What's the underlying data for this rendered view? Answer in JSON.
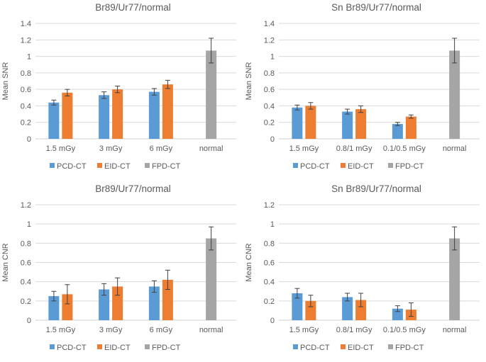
{
  "colors": {
    "PCD-CT": "#5b9bd5",
    "EID-CT": "#ed7d31",
    "FPD-CT": "#a5a5a5",
    "grid": "#d9d9d9",
    "error": "#404040"
  },
  "chart_data": [
    {
      "type": "bar",
      "title": "Br89/Ur77/normal",
      "ylabel": "Mean SNR",
      "ylim": [
        0,
        1.4
      ],
      "yticks": [
        "0",
        "0.2",
        "0.4",
        "0.6",
        "0.8",
        "1",
        "1.2",
        "1.4"
      ],
      "categories": [
        "1.5 mGy",
        "3 mGy",
        "6 mGy",
        "normal"
      ],
      "series": [
        {
          "name": "PCD-CT",
          "values": [
            0.44,
            0.53,
            0.57,
            null
          ],
          "errors": [
            0.03,
            0.04,
            0.04,
            null
          ]
        },
        {
          "name": "EID-CT",
          "values": [
            0.56,
            0.6,
            0.66,
            null
          ],
          "errors": [
            0.04,
            0.04,
            0.05,
            null
          ]
        },
        {
          "name": "FPD-CT",
          "values": [
            null,
            null,
            null,
            1.07
          ],
          "errors": [
            null,
            null,
            null,
            0.15
          ]
        }
      ],
      "legend": [
        "PCD-CT",
        "EID-CT",
        "FPD-CT"
      ]
    },
    {
      "type": "bar",
      "title": "Sn Br89/Ur77/normal",
      "ylabel": "Mean SNR",
      "ylim": [
        0,
        1.4
      ],
      "yticks": [
        "0",
        "0.2",
        "0.4",
        "0.6",
        "0.8",
        "1",
        "1.2",
        "1.4"
      ],
      "categories": [
        "1.5 mGy",
        "0.8/1 mGy",
        "0.1/0.5 mGy",
        "normal"
      ],
      "series": [
        {
          "name": "PCD-CT",
          "values": [
            0.38,
            0.33,
            0.18,
            null
          ],
          "errors": [
            0.03,
            0.03,
            0.02,
            null
          ]
        },
        {
          "name": "EID-CT",
          "values": [
            0.4,
            0.36,
            0.27,
            null
          ],
          "errors": [
            0.04,
            0.04,
            0.02,
            null
          ]
        },
        {
          "name": "FPD-CT",
          "values": [
            null,
            null,
            null,
            1.07
          ],
          "errors": [
            null,
            null,
            null,
            0.15
          ]
        }
      ],
      "legend": [
        "PCD-CT",
        "EID-CT",
        "FPD-CT"
      ]
    },
    {
      "type": "bar",
      "title": "Br89/Ur77/normal",
      "ylabel": "Mean CNR",
      "ylim": [
        0,
        1.2
      ],
      "yticks": [
        "0",
        "0.2",
        "0.4",
        "0.6",
        "0.8",
        "1",
        "1.2"
      ],
      "categories": [
        "1.5 mGy",
        "3 mGy",
        "6 mGy",
        "normal"
      ],
      "series": [
        {
          "name": "PCD-CT",
          "values": [
            0.25,
            0.32,
            0.35,
            null
          ],
          "errors": [
            0.05,
            0.06,
            0.06,
            null
          ]
        },
        {
          "name": "EID-CT",
          "values": [
            0.27,
            0.35,
            0.42,
            null
          ],
          "errors": [
            0.1,
            0.09,
            0.1,
            null
          ]
        },
        {
          "name": "FPD-CT",
          "values": [
            null,
            null,
            null,
            0.85
          ],
          "errors": [
            null,
            null,
            null,
            0.12
          ]
        }
      ],
      "legend": [
        "PCD-CT",
        "EID-CT",
        "FPD-CT"
      ]
    },
    {
      "type": "bar",
      "title": "Sn Br89/Ur77/normal",
      "ylabel": "Mean CNR",
      "ylim": [
        0,
        1.2
      ],
      "yticks": [
        "0",
        "0.2",
        "0.4",
        "0.6",
        "0.8",
        "1",
        "1.2"
      ],
      "categories": [
        "1.5 mGy",
        "0.8/1 mGy",
        "0.1/0.5 mGy",
        "normal"
      ],
      "series": [
        {
          "name": "PCD-CT",
          "values": [
            0.28,
            0.24,
            0.12,
            null
          ],
          "errors": [
            0.05,
            0.04,
            0.03,
            null
          ]
        },
        {
          "name": "EID-CT",
          "values": [
            0.2,
            0.21,
            0.11,
            null
          ],
          "errors": [
            0.06,
            0.07,
            0.07,
            null
          ]
        },
        {
          "name": "FPD-CT",
          "values": [
            null,
            null,
            null,
            0.85
          ],
          "errors": [
            null,
            null,
            null,
            0.12
          ]
        }
      ],
      "legend": [
        "PCD-CT",
        "EID-CT",
        "FPD-CT"
      ]
    }
  ]
}
